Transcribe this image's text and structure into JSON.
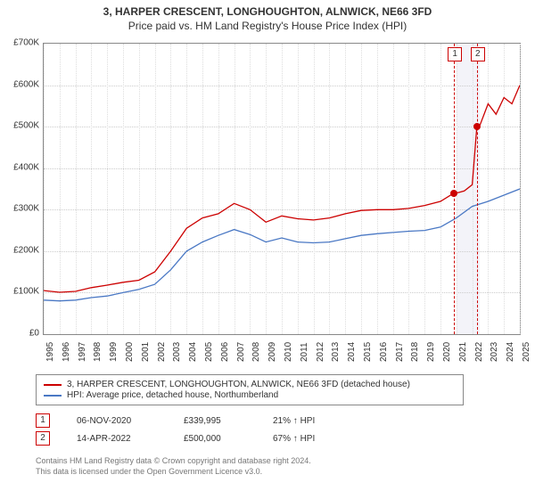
{
  "title": {
    "line1": "3, HARPER CRESCENT, LONGHOUGHTON, ALNWICK, NE66 3FD",
    "line2": "Price paid vs. HM Land Registry's House Price Index (HPI)"
  },
  "chart": {
    "ylim": [
      0,
      700000
    ],
    "ytick_step": 100000,
    "yticks": [
      "£0",
      "£100K",
      "£200K",
      "£300K",
      "£400K",
      "£500K",
      "£600K",
      "£700K"
    ],
    "xlim": [
      1995,
      2025
    ],
    "xtick_step": 1,
    "background_color": "#ffffff",
    "grid_color": "#cccccc",
    "band": {
      "start": 2021,
      "end": 2022.5,
      "color": "#e0e0f0"
    },
    "vlines": [
      {
        "x": 2020.85,
        "color": "#cc0000",
        "dash": "4,3"
      },
      {
        "x": 2022.29,
        "color": "#cc0000",
        "dash": "4,3"
      }
    ],
    "marker_boxes": [
      {
        "x": 2020.85,
        "label": "1"
      },
      {
        "x": 2022.29,
        "label": "2"
      }
    ],
    "series": [
      {
        "name": "price_paid",
        "color": "#cc0000",
        "width": 1.3,
        "data": [
          [
            1995,
            105000
          ],
          [
            1996,
            101000
          ],
          [
            1997,
            103000
          ],
          [
            1998,
            112000
          ],
          [
            1999,
            118000
          ],
          [
            2000,
            125000
          ],
          [
            2001,
            130000
          ],
          [
            2002,
            150000
          ],
          [
            2003,
            200000
          ],
          [
            2004,
            255000
          ],
          [
            2005,
            280000
          ],
          [
            2006,
            290000
          ],
          [
            2007,
            315000
          ],
          [
            2008,
            300000
          ],
          [
            2009,
            270000
          ],
          [
            2010,
            285000
          ],
          [
            2011,
            278000
          ],
          [
            2012,
            275000
          ],
          [
            2013,
            280000
          ],
          [
            2014,
            290000
          ],
          [
            2015,
            298000
          ],
          [
            2016,
            300000
          ],
          [
            2017,
            300000
          ],
          [
            2018,
            303000
          ],
          [
            2019,
            310000
          ],
          [
            2020,
            320000
          ],
          [
            2020.85,
            339995
          ],
          [
            2021,
            340000
          ],
          [
            2021.5,
            345000
          ],
          [
            2022,
            360000
          ],
          [
            2022.29,
            500000
          ],
          [
            2022.5,
            505000
          ],
          [
            2023,
            555000
          ],
          [
            2023.5,
            530000
          ],
          [
            2024,
            570000
          ],
          [
            2024.5,
            555000
          ],
          [
            2025,
            600000
          ]
        ]
      },
      {
        "name": "hpi",
        "color": "#4a78c4",
        "width": 1.3,
        "data": [
          [
            1995,
            82000
          ],
          [
            1996,
            80000
          ],
          [
            1997,
            82000
          ],
          [
            1998,
            88000
          ],
          [
            1999,
            92000
          ],
          [
            2000,
            100000
          ],
          [
            2001,
            108000
          ],
          [
            2002,
            120000
          ],
          [
            2003,
            155000
          ],
          [
            2004,
            200000
          ],
          [
            2005,
            222000
          ],
          [
            2006,
            238000
          ],
          [
            2007,
            252000
          ],
          [
            2008,
            240000
          ],
          [
            2009,
            222000
          ],
          [
            2010,
            232000
          ],
          [
            2011,
            222000
          ],
          [
            2012,
            220000
          ],
          [
            2013,
            222000
          ],
          [
            2014,
            230000
          ],
          [
            2015,
            238000
          ],
          [
            2016,
            242000
          ],
          [
            2017,
            245000
          ],
          [
            2018,
            248000
          ],
          [
            2019,
            250000
          ],
          [
            2020,
            258000
          ],
          [
            2021,
            280000
          ],
          [
            2022,
            308000
          ],
          [
            2023,
            320000
          ],
          [
            2024,
            335000
          ],
          [
            2025,
            350000
          ]
        ]
      }
    ],
    "points": [
      {
        "x": 2020.85,
        "y": 339995,
        "color": "#cc0000"
      },
      {
        "x": 2022.29,
        "y": 500000,
        "color": "#cc0000"
      }
    ]
  },
  "legend": {
    "items": [
      {
        "color": "#cc0000",
        "label": "3, HARPER CRESCENT, LONGHOUGHTON, ALNWICK, NE66 3FD (detached house)"
      },
      {
        "color": "#4a78c4",
        "label": "HPI: Average price, detached house, Northumberland"
      }
    ]
  },
  "events": [
    {
      "marker": "1",
      "date": "06-NOV-2020",
      "price": "£339,995",
      "pct": "21% ↑ HPI"
    },
    {
      "marker": "2",
      "date": "14-APR-2022",
      "price": "£500,000",
      "pct": "67% ↑ HPI"
    }
  ],
  "license": {
    "line1": "Contains HM Land Registry data © Crown copyright and database right 2024.",
    "line2": "This data is licensed under the Open Government Licence v3.0."
  }
}
